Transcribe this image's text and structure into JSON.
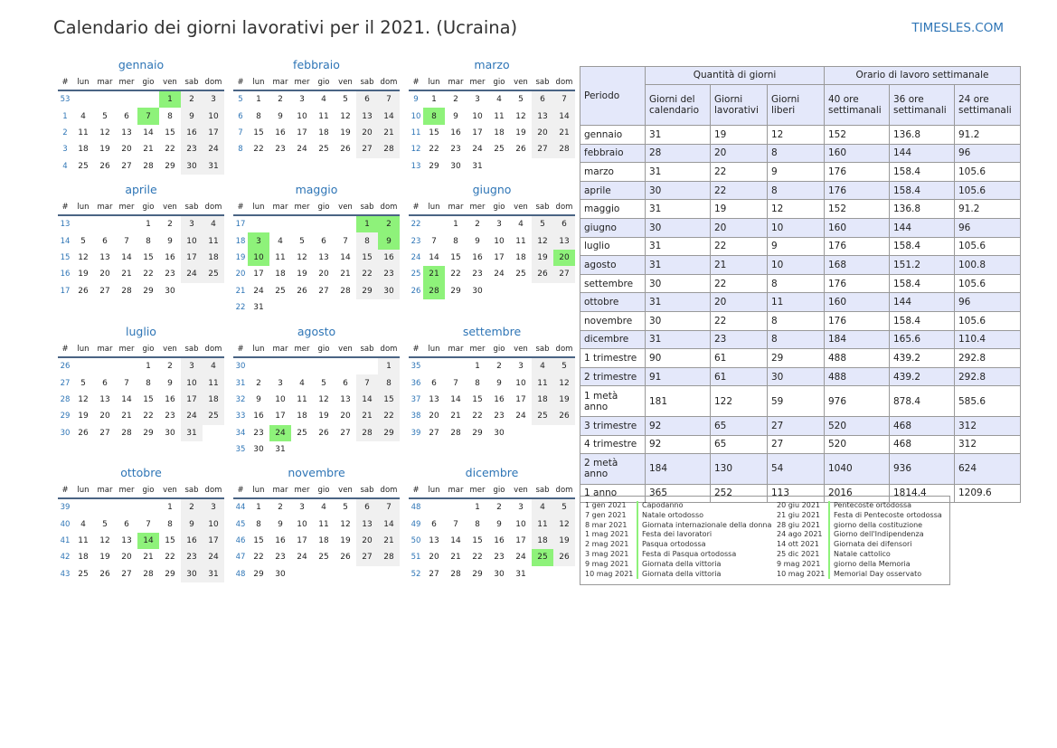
{
  "header": {
    "title": "Calendario dei giorni lavorativi per il 2021. (Ucraina)",
    "site": "TIMESLES.COM"
  },
  "colors": {
    "accent": "#2e75b6",
    "holiday": "#8ef27a",
    "weekend": "#f0f0f0",
    "table_header": "#e4e8fa"
  },
  "weekday_header": [
    "#",
    "lun",
    "mar",
    "mer",
    "gio",
    "ven",
    "sab",
    "dom"
  ],
  "months": [
    {
      "name": "gennaio",
      "weeks": [
        53,
        1,
        2,
        3,
        4
      ],
      "start": 4,
      "days": 31,
      "holidays": [
        1,
        7
      ]
    },
    {
      "name": "febbraio",
      "weeks": [
        5,
        6,
        7,
        8
      ],
      "start": 0,
      "days": 28,
      "holidays": []
    },
    {
      "name": "marzo",
      "weeks": [
        9,
        10,
        11,
        12,
        13
      ],
      "start": 0,
      "days": 31,
      "holidays": [
        8
      ]
    },
    {
      "name": "aprile",
      "weeks": [
        13,
        14,
        15,
        16,
        17
      ],
      "start": 3,
      "days": 30,
      "holidays": []
    },
    {
      "name": "maggio",
      "weeks": [
        17,
        18,
        19,
        20,
        21,
        22
      ],
      "start": 5,
      "days": 31,
      "holidays": [
        1,
        2,
        3,
        9,
        10
      ]
    },
    {
      "name": "giugno",
      "weeks": [
        22,
        23,
        24,
        25,
        26
      ],
      "start": 1,
      "days": 30,
      "holidays": [
        20,
        21,
        28
      ]
    },
    {
      "name": "luglio",
      "weeks": [
        26,
        27,
        28,
        29,
        30
      ],
      "start": 3,
      "days": 31,
      "holidays": []
    },
    {
      "name": "agosto",
      "weeks": [
        30,
        31,
        32,
        33,
        34,
        35
      ],
      "start": 6,
      "days": 31,
      "holidays": [
        24
      ]
    },
    {
      "name": "settembre",
      "weeks": [
        35,
        36,
        37,
        38,
        39
      ],
      "start": 2,
      "days": 30,
      "holidays": []
    },
    {
      "name": "ottobre",
      "weeks": [
        39,
        40,
        41,
        42,
        43
      ],
      "start": 4,
      "days": 31,
      "holidays": [
        14
      ]
    },
    {
      "name": "novembre",
      "weeks": [
        44,
        45,
        46,
        47,
        48
      ],
      "start": 0,
      "days": 30,
      "holidays": []
    },
    {
      "name": "dicembre",
      "weeks": [
        48,
        49,
        50,
        51,
        52
      ],
      "start": 2,
      "days": 31,
      "holidays": [
        25
      ]
    }
  ],
  "summary": {
    "header_period": "Periodo",
    "group_days": "Quantità di giorni",
    "group_hours": "Orario di lavoro settimanale",
    "columns": [
      "Giorni del calendario",
      "Giorni lavorativi",
      "Giorni liberi",
      "40 ore settimanali",
      "36 ore settimanali",
      "24 ore settimanali"
    ],
    "rows": [
      {
        "label": "gennaio",
        "values": [
          "31",
          "19",
          "12",
          "152",
          "136.8",
          "91.2"
        ]
      },
      {
        "label": "febbraio",
        "values": [
          "28",
          "20",
          "8",
          "160",
          "144",
          "96"
        ]
      },
      {
        "label": "marzo",
        "values": [
          "31",
          "22",
          "9",
          "176",
          "158.4",
          "105.6"
        ]
      },
      {
        "label": "aprile",
        "values": [
          "30",
          "22",
          "8",
          "176",
          "158.4",
          "105.6"
        ]
      },
      {
        "label": "maggio",
        "values": [
          "31",
          "19",
          "12",
          "152",
          "136.8",
          "91.2"
        ]
      },
      {
        "label": "giugno",
        "values": [
          "30",
          "20",
          "10",
          "160",
          "144",
          "96"
        ]
      },
      {
        "label": "luglio",
        "values": [
          "31",
          "22",
          "9",
          "176",
          "158.4",
          "105.6"
        ]
      },
      {
        "label": "agosto",
        "values": [
          "31",
          "21",
          "10",
          "168",
          "151.2",
          "100.8"
        ]
      },
      {
        "label": "settembre",
        "values": [
          "30",
          "22",
          "8",
          "176",
          "158.4",
          "105.6"
        ]
      },
      {
        "label": "ottobre",
        "values": [
          "31",
          "20",
          "11",
          "160",
          "144",
          "96"
        ]
      },
      {
        "label": "novembre",
        "values": [
          "30",
          "22",
          "8",
          "176",
          "158.4",
          "105.6"
        ]
      },
      {
        "label": "dicembre",
        "values": [
          "31",
          "23",
          "8",
          "184",
          "165.6",
          "110.4"
        ]
      },
      {
        "label": "1 trimestre",
        "values": [
          "90",
          "61",
          "29",
          "488",
          "439.2",
          "292.8"
        ]
      },
      {
        "label": "2 trimestre",
        "values": [
          "91",
          "61",
          "30",
          "488",
          "439.2",
          "292.8"
        ]
      },
      {
        "label": "1 metà anno",
        "values": [
          "181",
          "122",
          "59",
          "976",
          "878.4",
          "585.6"
        ]
      },
      {
        "label": "3 trimestre",
        "values": [
          "92",
          "65",
          "27",
          "520",
          "468",
          "312"
        ]
      },
      {
        "label": "4 trimestre",
        "values": [
          "92",
          "65",
          "27",
          "520",
          "468",
          "312"
        ]
      },
      {
        "label": "2 metà anno",
        "values": [
          "184",
          "130",
          "54",
          "1040",
          "936",
          "624"
        ]
      },
      {
        "label": "1 anno",
        "values": [
          "365",
          "252",
          "113",
          "2016",
          "1814.4",
          "1209.6"
        ]
      }
    ]
  },
  "holidays_list": {
    "left": [
      {
        "date": "1 gen 2021",
        "name": "Capodanno"
      },
      {
        "date": "7 gen 2021",
        "name": "Natale ortodosso"
      },
      {
        "date": "8 mar 2021",
        "name": "Giornata internazionale della donna"
      },
      {
        "date": "1 mag 2021",
        "name": "Festa dei lavoratori"
      },
      {
        "date": "2 mag 2021",
        "name": "Pasqua ortodossa"
      },
      {
        "date": "3 mag 2021",
        "name": "Festa di Pasqua ortodossa"
      },
      {
        "date": "9 mag 2021",
        "name": "Giornata della vittoria"
      },
      {
        "date": "10 mag 2021",
        "name": "Giornata della vittoria"
      }
    ],
    "right": [
      {
        "date": "20 giu 2021",
        "name": "Pentecoste ortodossa"
      },
      {
        "date": "21 giu 2021",
        "name": "Festa di Pentecoste ortodossa"
      },
      {
        "date": "28 giu 2021",
        "name": "giorno della costituzione"
      },
      {
        "date": "24 ago 2021",
        "name": "Giorno dell'Indipendenza"
      },
      {
        "date": "14 ott 2021",
        "name": "Giornata dei difensori"
      },
      {
        "date": "25 dic 2021",
        "name": "Natale cattolico"
      },
      {
        "date": "9 mag 2021",
        "name": "giorno della Memoria"
      },
      {
        "date": "10 mag 2021",
        "name": "Memorial Day osservato"
      }
    ]
  }
}
